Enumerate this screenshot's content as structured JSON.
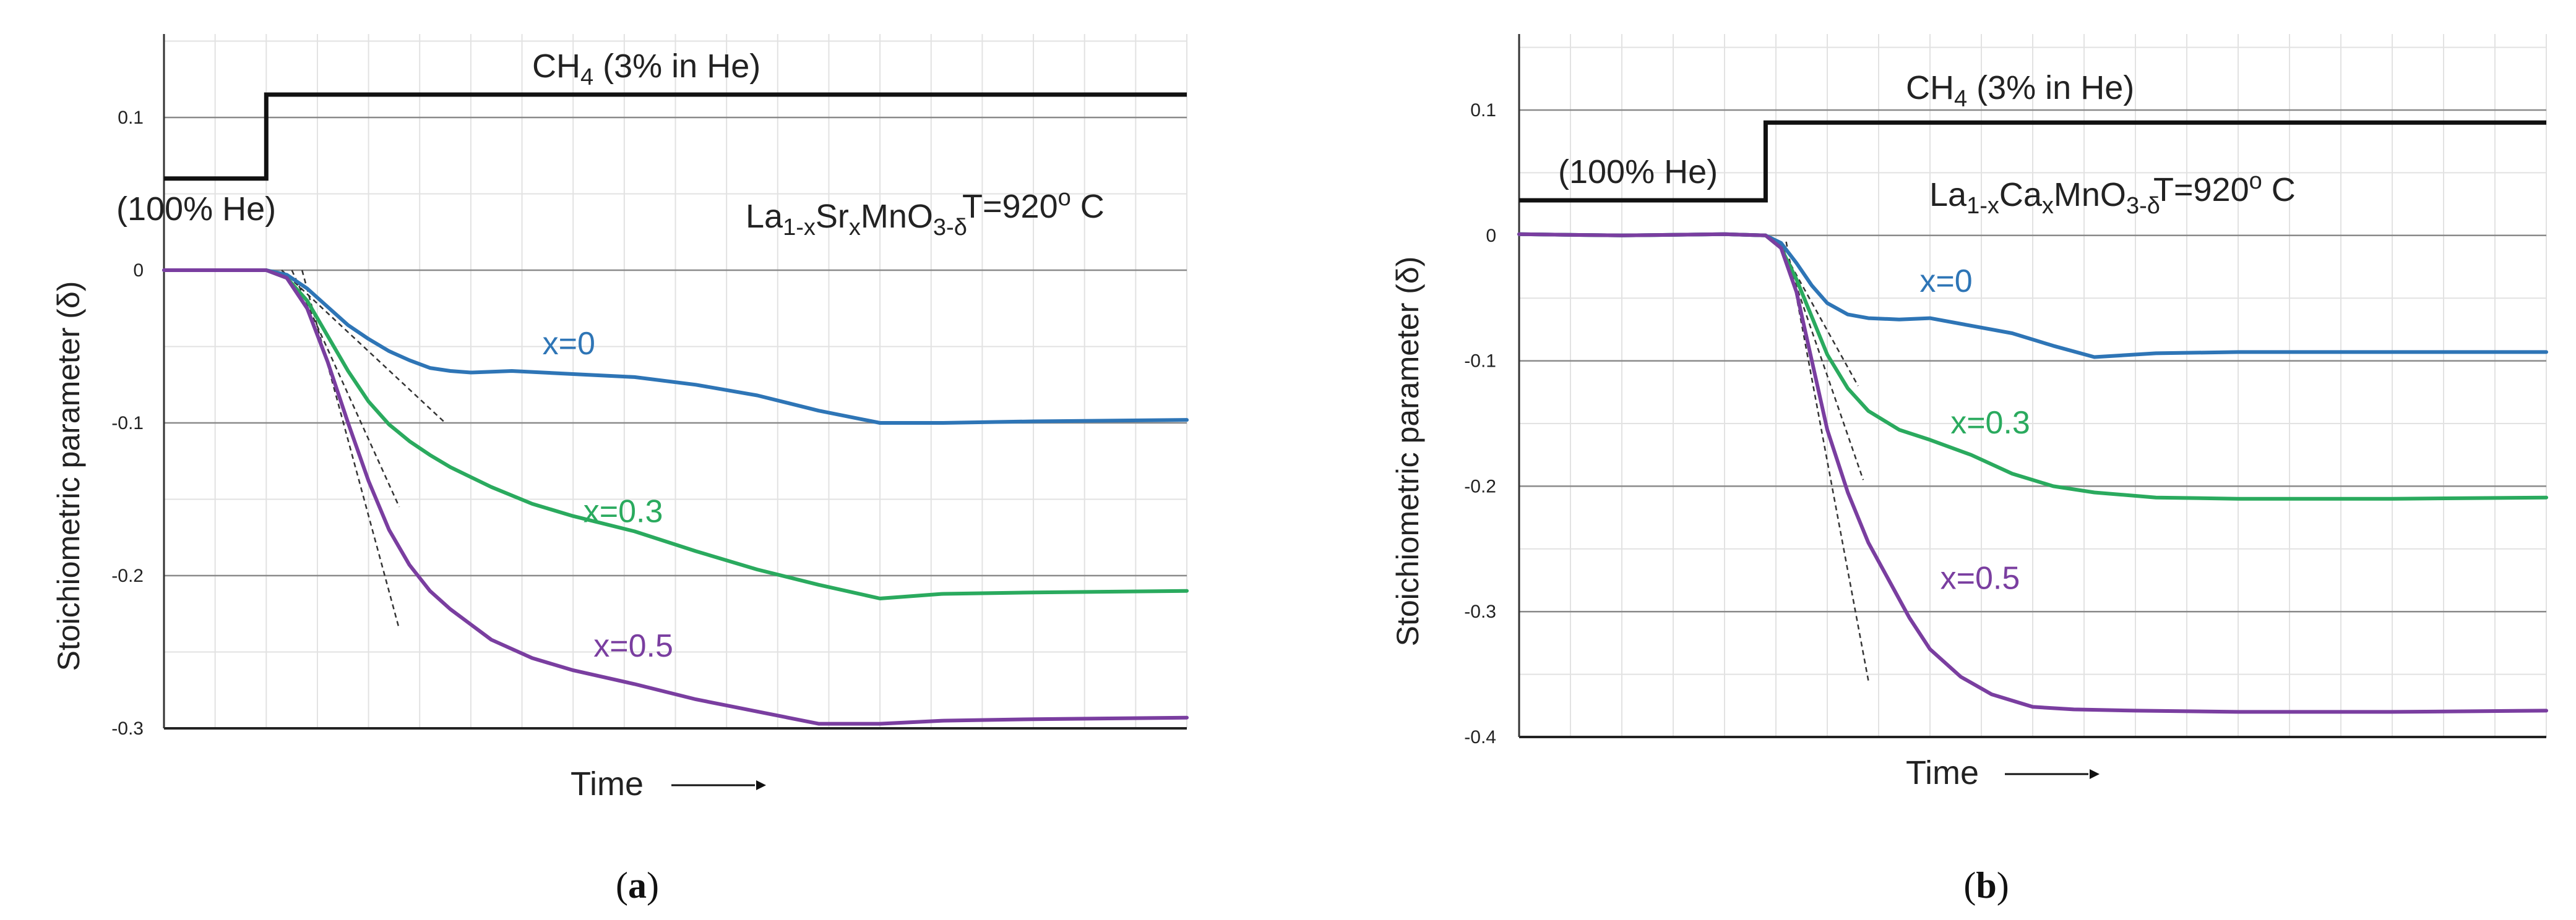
{
  "chart_data": [
    {
      "type": "line",
      "panel_label": "a",
      "title": "",
      "xlabel": "Time",
      "ylabel": "Stoichiometric parameter (δ)",
      "ylim": [
        -0.3,
        0.15
      ],
      "yticks": [
        "0.1",
        "0",
        "-0.1",
        "-0.2",
        "-0.3"
      ],
      "ytick_values": [
        0.1,
        0,
        -0.1,
        -0.2,
        -0.3
      ],
      "xlim": [
        0,
        100
      ],
      "grid": true,
      "gas_step": {
        "x": [
          0,
          10,
          10,
          100
        ],
        "y": [
          0.06,
          0.06,
          0.115,
          0.115
        ],
        "label_before": "(100% He)",
        "label_after_main": "CH",
        "label_after_sub": "4",
        "label_after_rest": " (3% in He)"
      },
      "annotations": {
        "material": [
          "La",
          "1-x",
          "Sr",
          "x",
          "MnO",
          "3-δ"
        ],
        "temperature": [
          "T=920",
          "o",
          " C"
        ]
      },
      "series": [
        {
          "name": "x=0",
          "color": "#2e75b6",
          "x": [
            0,
            10,
            12,
            14,
            16,
            18,
            20,
            22,
            24,
            26,
            28,
            30,
            34,
            40,
            46,
            52,
            58,
            64,
            70,
            76,
            85,
            100
          ],
          "y": [
            0,
            0,
            -0.003,
            -0.012,
            -0.024,
            -0.036,
            -0.045,
            -0.053,
            -0.059,
            -0.064,
            -0.066,
            -0.067,
            -0.066,
            -0.068,
            -0.07,
            -0.075,
            -0.082,
            -0.092,
            -0.1,
            -0.1,
            -0.099,
            -0.098
          ]
        },
        {
          "name": "x=0.3",
          "color": "#2aaa5e",
          "x": [
            0,
            10,
            12,
            14,
            16,
            18,
            20,
            22,
            24,
            26,
            28,
            32,
            36,
            40,
            46,
            52,
            58,
            64,
            70,
            76,
            85,
            100
          ],
          "y": [
            0,
            0,
            -0.005,
            -0.02,
            -0.043,
            -0.066,
            -0.086,
            -0.101,
            -0.112,
            -0.121,
            -0.129,
            -0.142,
            -0.153,
            -0.161,
            -0.171,
            -0.184,
            -0.196,
            -0.206,
            -0.215,
            -0.212,
            -0.211,
            -0.21
          ]
        },
        {
          "name": "x=0.5",
          "color": "#7a3ea0",
          "x": [
            0,
            10,
            12,
            14,
            16,
            18,
            20,
            22,
            24,
            26,
            28,
            32,
            36,
            40,
            46,
            52,
            58,
            64,
            70,
            76,
            85,
            100
          ],
          "y": [
            0,
            0,
            -0.005,
            -0.025,
            -0.06,
            -0.1,
            -0.138,
            -0.17,
            -0.193,
            -0.21,
            -0.222,
            -0.242,
            -0.254,
            -0.262,
            -0.271,
            -0.281,
            -0.289,
            -0.297,
            -0.297,
            -0.295,
            -0.294,
            -0.293
          ]
        }
      ],
      "tangents": [
        {
          "x": [
            11.5,
            27.5
          ],
          "y": [
            0,
            -0.1
          ]
        },
        {
          "x": [
            12.5,
            23.0
          ],
          "y": [
            0,
            -0.155
          ]
        },
        {
          "x": [
            13.5,
            23.0
          ],
          "y": [
            0,
            -0.235
          ]
        }
      ],
      "label_positions": [
        {
          "series": "x=0",
          "x": 37,
          "y": -0.055
        },
        {
          "series": "x=0.3",
          "x": 41,
          "y": -0.165
        },
        {
          "series": "x=0.5",
          "x": 42,
          "y": -0.253
        }
      ]
    },
    {
      "type": "line",
      "panel_label": "b",
      "title": "",
      "xlabel": "Time",
      "ylabel": "Stoichiometric parameter (δ)",
      "ylim": [
        -0.4,
        0.14
      ],
      "yticks": [
        "0.1",
        "0",
        "-0.1",
        "-0.2",
        "-0.3",
        "-0.4"
      ],
      "ytick_values": [
        0.1,
        0,
        -0.1,
        -0.2,
        -0.3,
        -0.4
      ],
      "xlim": [
        0,
        100
      ],
      "grid": true,
      "gas_step": {
        "x": [
          0,
          24,
          24,
          100
        ],
        "y": [
          0.028,
          0.028,
          0.09,
          0.09
        ],
        "label_before": "(100% He)",
        "label_after_main": "CH",
        "label_after_sub": "4",
        "label_after_rest": " (3% in He)"
      },
      "annotations": {
        "material": [
          "La",
          "1-x",
          "Ca",
          "x",
          "MnO",
          "3-δ"
        ],
        "temperature": [
          "T=920",
          "o",
          " C"
        ]
      },
      "series": [
        {
          "name": "x=0",
          "color": "#2e75b6",
          "x": [
            0,
            10,
            20,
            24,
            25.5,
            27,
            28.5,
            30,
            32,
            34,
            37,
            40,
            44,
            48,
            52,
            56,
            62,
            70,
            85,
            100
          ],
          "y": [
            0.001,
            0,
            0.001,
            0,
            -0.006,
            -0.022,
            -0.04,
            -0.054,
            -0.063,
            -0.066,
            -0.067,
            -0.066,
            -0.072,
            -0.078,
            -0.088,
            -0.097,
            -0.094,
            -0.093,
            -0.093,
            -0.093
          ]
        },
        {
          "name": "x=0.3",
          "color": "#2aaa5e",
          "x": [
            0,
            10,
            20,
            24,
            25.5,
            27,
            28.5,
            30,
            32,
            34,
            37,
            40,
            44,
            48,
            52,
            56,
            62,
            70,
            85,
            100
          ],
          "y": [
            0.001,
            0,
            0.001,
            0,
            -0.01,
            -0.035,
            -0.065,
            -0.095,
            -0.122,
            -0.14,
            -0.155,
            -0.163,
            -0.175,
            -0.19,
            -0.2,
            -0.205,
            -0.209,
            -0.21,
            -0.21,
            -0.209
          ]
        },
        {
          "name": "x=0.5",
          "color": "#7a3ea0",
          "x": [
            0,
            10,
            20,
            24,
            25.5,
            27,
            28.5,
            30,
            32,
            34,
            36,
            38,
            40,
            43,
            46,
            50,
            54,
            60,
            70,
            85,
            100
          ],
          "y": [
            0.001,
            0,
            0.001,
            0,
            -0.01,
            -0.045,
            -0.1,
            -0.155,
            -0.205,
            -0.245,
            -0.275,
            -0.305,
            -0.33,
            -0.352,
            -0.366,
            -0.376,
            -0.378,
            -0.379,
            -0.38,
            -0.38,
            -0.379
          ]
        }
      ],
      "tangents": [
        {
          "x": [
            25.2,
            33.0
          ],
          "y": [
            -0.005,
            -0.12
          ]
        },
        {
          "x": [
            25.5,
            33.5
          ],
          "y": [
            -0.005,
            -0.195
          ]
        },
        {
          "x": [
            26.0,
            34.0
          ],
          "y": [
            -0.005,
            -0.355
          ]
        }
      ],
      "label_positions": [
        {
          "series": "x=0",
          "x": 39,
          "y": -0.045
        },
        {
          "series": "x=0.3",
          "x": 42,
          "y": -0.158
        },
        {
          "series": "x=0.5",
          "x": 41,
          "y": -0.282
        }
      ]
    }
  ]
}
